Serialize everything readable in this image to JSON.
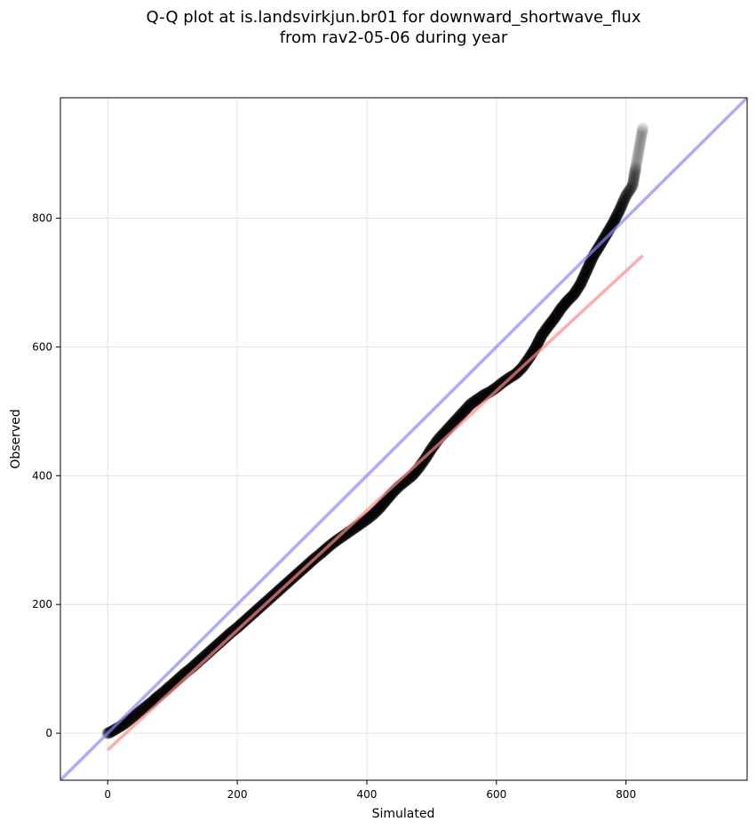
{
  "chart_data": {
    "type": "scatter",
    "title_line1": "Q-Q plot at is.landsvirkjun.br01 for downward_shortwave_flux",
    "title_line2": "from rav2-05-06 during year",
    "xlabel": "Simulated",
    "ylabel": "Observed",
    "xlim": [
      -73,
      987
    ],
    "ylim": [
      -73,
      987
    ],
    "xticks": [
      0,
      200,
      400,
      600,
      800
    ],
    "yticks": [
      0,
      200,
      400,
      600,
      800
    ],
    "grid": true,
    "identity_line_color": "#8888ff",
    "fit_line_color": "#ff8888",
    "fit_line": {
      "x": [
        0,
        826
      ],
      "y": [
        -26,
        742
      ]
    },
    "quantile_points": [
      [
        0,
        0
      ],
      [
        5,
        2
      ],
      [
        10,
        5
      ],
      [
        15,
        8
      ],
      [
        20,
        11
      ],
      [
        25,
        14
      ],
      [
        30,
        18
      ],
      [
        35,
        22
      ],
      [
        40,
        26
      ],
      [
        45,
        30
      ],
      [
        50,
        34
      ],
      [
        55,
        38
      ],
      [
        60,
        42
      ],
      [
        65,
        46
      ],
      [
        70,
        50
      ],
      [
        75,
        55
      ],
      [
        80,
        59
      ],
      [
        85,
        63
      ],
      [
        90,
        67
      ],
      [
        95,
        72
      ],
      [
        100,
        76
      ],
      [
        110,
        85
      ],
      [
        120,
        94
      ],
      [
        130,
        102
      ],
      [
        140,
        111
      ],
      [
        150,
        120
      ],
      [
        160,
        129
      ],
      [
        170,
        138
      ],
      [
        180,
        147
      ],
      [
        190,
        156
      ],
      [
        200,
        164
      ],
      [
        210,
        173
      ],
      [
        220,
        182
      ],
      [
        230,
        191
      ],
      [
        240,
        200
      ],
      [
        250,
        209
      ],
      [
        260,
        218
      ],
      [
        270,
        227
      ],
      [
        280,
        236
      ],
      [
        290,
        245
      ],
      [
        300,
        254
      ],
      [
        310,
        263
      ],
      [
        320,
        272
      ],
      [
        330,
        280
      ],
      [
        340,
        289
      ],
      [
        350,
        297
      ],
      [
        360,
        304
      ],
      [
        370,
        311
      ],
      [
        380,
        318
      ],
      [
        390,
        325
      ],
      [
        400,
        332
      ],
      [
        410,
        340
      ],
      [
        420,
        350
      ],
      [
        430,
        362
      ],
      [
        440,
        374
      ],
      [
        450,
        384
      ],
      [
        460,
        392
      ],
      [
        470,
        400
      ],
      [
        480,
        412
      ],
      [
        490,
        426
      ],
      [
        500,
        442
      ],
      [
        510,
        456
      ],
      [
        520,
        467
      ],
      [
        530,
        478
      ],
      [
        540,
        489
      ],
      [
        550,
        500
      ],
      [
        560,
        511
      ],
      [
        570,
        518
      ],
      [
        580,
        525
      ],
      [
        590,
        530
      ],
      [
        600,
        537
      ],
      [
        610,
        545
      ],
      [
        620,
        552
      ],
      [
        630,
        558
      ],
      [
        640,
        568
      ],
      [
        650,
        582
      ],
      [
        660,
        598
      ],
      [
        670,
        618
      ],
      [
        680,
        632
      ],
      [
        690,
        645
      ],
      [
        700,
        660
      ],
      [
        710,
        672
      ],
      [
        720,
        682
      ],
      [
        730,
        698
      ],
      [
        740,
        720
      ],
      [
        750,
        742
      ],
      [
        760,
        758
      ],
      [
        770,
        775
      ],
      [
        780,
        792
      ],
      [
        790,
        812
      ],
      [
        800,
        835
      ],
      [
        810,
        850
      ],
      [
        818,
        895
      ],
      [
        826,
        940
      ]
    ]
  }
}
